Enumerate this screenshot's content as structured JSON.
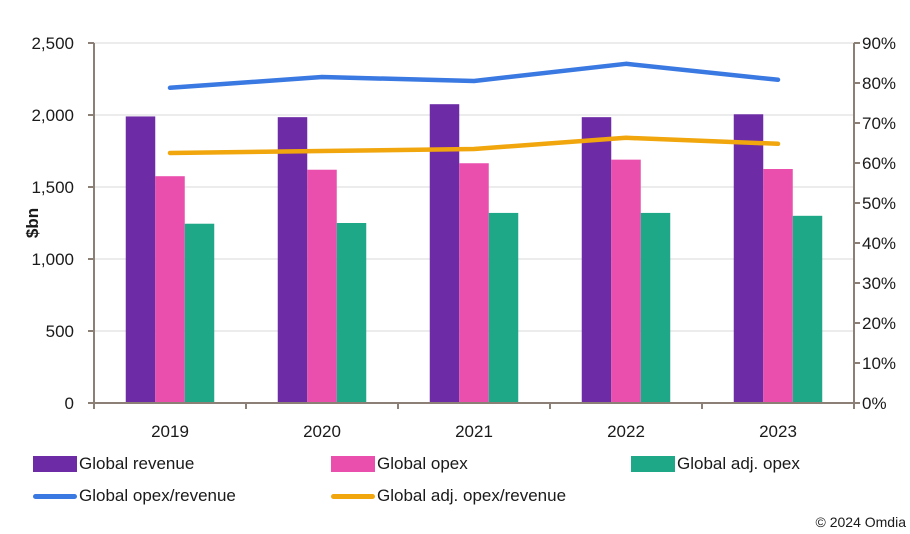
{
  "chart_data": {
    "type": "bar",
    "title": "",
    "xlabel": "",
    "ylabel": "$bn",
    "y2label": "",
    "categories": [
      "2019",
      "2020",
      "2021",
      "2022",
      "2023"
    ],
    "ylim": [
      0,
      2500
    ],
    "y_ticks": [
      "0",
      "500",
      "1,000",
      "1,500",
      "2,000",
      "2,500"
    ],
    "y_tick_values": [
      0,
      500,
      1000,
      1500,
      2000,
      2500
    ],
    "y2lim": [
      0,
      90
    ],
    "y2_ticks": [
      "0%",
      "10%",
      "20%",
      "30%",
      "40%",
      "50%",
      "60%",
      "70%",
      "80%",
      "90%"
    ],
    "y2_tick_values": [
      0,
      10,
      20,
      30,
      40,
      50,
      60,
      70,
      80,
      90
    ],
    "grid": true,
    "legend_position": "bottom",
    "series": [
      {
        "name": "Global revenue",
        "type": "bar",
        "axis": "left",
        "color": "#6E2BA6",
        "values": [
          1990,
          1985,
          2075,
          1985,
          2005
        ]
      },
      {
        "name": "Global opex",
        "type": "bar",
        "axis": "left",
        "color": "#EA4FAE",
        "values": [
          1575,
          1620,
          1665,
          1690,
          1625
        ]
      },
      {
        "name": "Global adj. opex",
        "type": "bar",
        "axis": "left",
        "color": "#1EA888",
        "values": [
          1245,
          1250,
          1320,
          1320,
          1300
        ]
      },
      {
        "name": "Global opex/revenue",
        "type": "line",
        "axis": "right",
        "color": "#3A78E2",
        "values": [
          78.8,
          81.5,
          80.5,
          84.8,
          80.8
        ]
      },
      {
        "name": "Global adj. opex/revenue",
        "type": "line",
        "axis": "right",
        "color": "#F0A60C",
        "values": [
          62.5,
          63.0,
          63.5,
          66.3,
          64.8
        ]
      }
    ]
  },
  "copyright": "© 2024 Omdia",
  "colors": {
    "axis": "#8C7F75",
    "grid": "#E6E6E6"
  }
}
